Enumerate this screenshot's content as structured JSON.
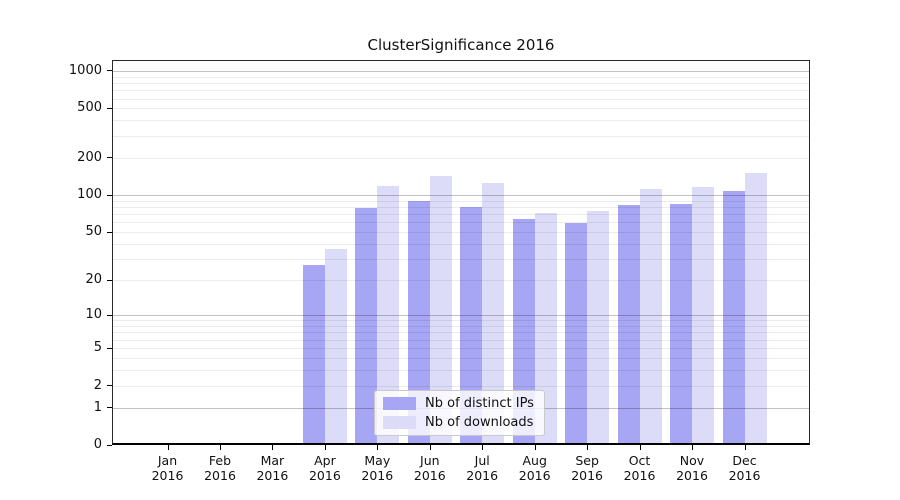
{
  "title": "ClusterSignificance 2016",
  "chart_data": {
    "type": "bar",
    "title": "ClusterSignificance 2016",
    "scale": "log1p",
    "grid": true,
    "legend_position": "lower-center",
    "ylim": [
      0,
      1223
    ],
    "y_ticks": [
      0,
      1,
      2,
      5,
      10,
      20,
      50,
      100,
      200,
      500,
      1000
    ],
    "minor_grid_values": [
      2,
      3,
      4,
      5,
      6,
      7,
      8,
      9,
      20,
      30,
      40,
      50,
      60,
      70,
      80,
      90,
      200,
      300,
      400,
      500,
      600,
      700,
      800,
      900
    ],
    "major_grid_values": [
      1,
      10,
      100,
      1000
    ],
    "categories": [
      {
        "month": "Jan",
        "year": "2016"
      },
      {
        "month": "Feb",
        "year": "2016"
      },
      {
        "month": "Mar",
        "year": "2016"
      },
      {
        "month": "Apr",
        "year": "2016"
      },
      {
        "month": "May",
        "year": "2016"
      },
      {
        "month": "Jun",
        "year": "2016"
      },
      {
        "month": "Jul",
        "year": "2016"
      },
      {
        "month": "Aug",
        "year": "2016"
      },
      {
        "month": "Sep",
        "year": "2016"
      },
      {
        "month": "Oct",
        "year": "2016"
      },
      {
        "month": "Nov",
        "year": "2016"
      },
      {
        "month": "Dec",
        "year": "2016"
      }
    ],
    "series": [
      {
        "name": "Nb of distinct IPs",
        "color": "#a6a6f4",
        "values": [
          0,
          0,
          0,
          27,
          79,
          90,
          80,
          64,
          59,
          83,
          84,
          108
        ]
      },
      {
        "name": "Nb of downloads",
        "color": "#dcdcf9",
        "values": [
          0,
          0,
          0,
          36,
          118,
          143,
          125,
          71,
          74,
          112,
          117,
          150
        ]
      }
    ]
  }
}
